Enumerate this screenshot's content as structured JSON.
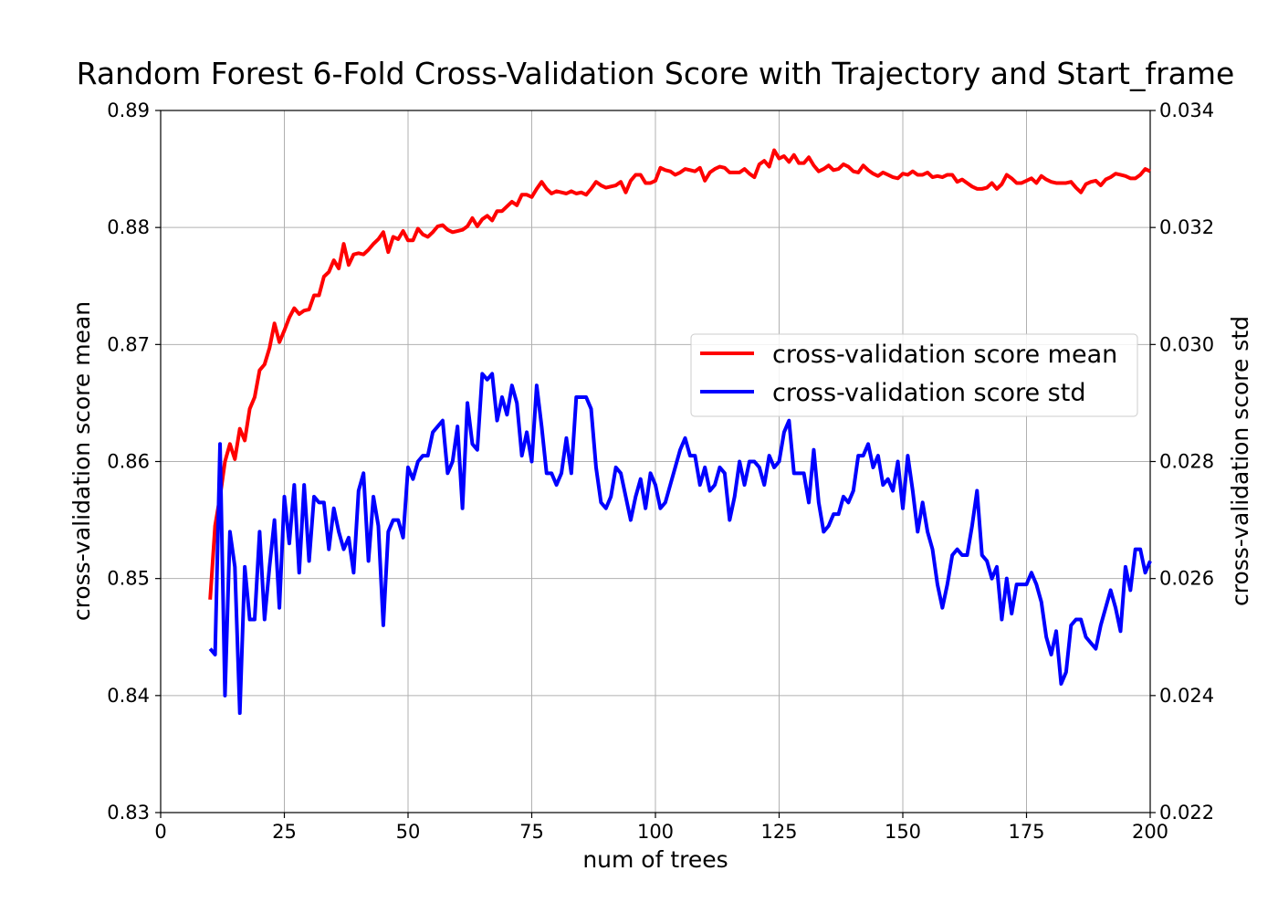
{
  "chart_data": {
    "type": "line",
    "title": "Random Forest 6-Fold Cross-Validation Score with Trajectory and Start_frame",
    "xlabel": "num of trees",
    "ylabel_left": "cross-validation score mean",
    "ylabel_right": "cross-validation score std",
    "xlim": [
      0,
      200
    ],
    "ylim_left": [
      0.83,
      0.89
    ],
    "ylim_right": [
      0.022,
      0.034
    ],
    "x_ticks": [
      "0",
      "25",
      "50",
      "75",
      "100",
      "125",
      "150",
      "175",
      "200"
    ],
    "y_left_ticks": [
      "0.83",
      "0.84",
      "0.85",
      "0.86",
      "0.87",
      "0.88",
      "0.89"
    ],
    "y_right_ticks": [
      "0.022",
      "0.024",
      "0.026",
      "0.028",
      "0.030",
      "0.032",
      "0.034"
    ],
    "grid": true,
    "legend_position": "center-right",
    "series": [
      {
        "name": "cross-validation score mean",
        "axis": "left",
        "color": "#ff0000",
        "x_start": 10,
        "x_step": 1,
        "values": [
          0.8482,
          0.8545,
          0.857,
          0.86,
          0.8615,
          0.8602,
          0.8628,
          0.8618,
          0.8645,
          0.8655,
          0.8678,
          0.8683,
          0.8697,
          0.8718,
          0.8702,
          0.8712,
          0.8723,
          0.8731,
          0.8726,
          0.8729,
          0.873,
          0.8742,
          0.8742,
          0.8758,
          0.8762,
          0.8772,
          0.8765,
          0.8786,
          0.8768,
          0.8777,
          0.8778,
          0.8777,
          0.8781,
          0.8786,
          0.879,
          0.8796,
          0.8779,
          0.8792,
          0.879,
          0.8797,
          0.8789,
          0.8789,
          0.8799,
          0.8794,
          0.8792,
          0.8796,
          0.8801,
          0.8802,
          0.8798,
          0.8796,
          0.8797,
          0.8798,
          0.8801,
          0.8808,
          0.8801,
          0.8807,
          0.881,
          0.8806,
          0.8814,
          0.8814,
          0.8818,
          0.8822,
          0.8819,
          0.8828,
          0.8828,
          0.8826,
          0.8833,
          0.8839,
          0.8833,
          0.8829,
          0.8831,
          0.883,
          0.8829,
          0.8831,
          0.8829,
          0.883,
          0.8828,
          0.8833,
          0.8839,
          0.8836,
          0.8834,
          0.8835,
          0.8836,
          0.8839,
          0.883,
          0.884,
          0.8845,
          0.8845,
          0.8838,
          0.8838,
          0.884,
          0.8851,
          0.8849,
          0.8848,
          0.8845,
          0.8847,
          0.885,
          0.8849,
          0.8848,
          0.8851,
          0.884,
          0.8847,
          0.885,
          0.8852,
          0.8851,
          0.8847,
          0.8847,
          0.8847,
          0.885,
          0.8846,
          0.8843,
          0.8854,
          0.8857,
          0.8852,
          0.8866,
          0.8859,
          0.8861,
          0.8856,
          0.8862,
          0.8855,
          0.8855,
          0.886,
          0.8853,
          0.8848,
          0.885,
          0.8853,
          0.8849,
          0.885,
          0.8854,
          0.8852,
          0.8848,
          0.8847,
          0.8853,
          0.8849,
          0.8846,
          0.8844,
          0.8847,
          0.8845,
          0.8843,
          0.8842,
          0.8846,
          0.8845,
          0.8848,
          0.8845,
          0.8845,
          0.8847,
          0.8843,
          0.8844,
          0.8843,
          0.8845,
          0.8845,
          0.8839,
          0.8841,
          0.8838,
          0.8835,
          0.8833,
          0.8833,
          0.8834,
          0.8838,
          0.8833,
          0.8837,
          0.8845,
          0.8842,
          0.8838,
          0.8838,
          0.884,
          0.8842,
          0.8838,
          0.8844,
          0.8841,
          0.8839,
          0.8838,
          0.8838,
          0.8838,
          0.8839,
          0.8834,
          0.883,
          0.8837,
          0.8839,
          0.884,
          0.8836,
          0.8841,
          0.8843,
          0.8846,
          0.8845,
          0.8844,
          0.8842,
          0.8842,
          0.8845,
          0.885,
          0.8848
        ]
      },
      {
        "name": "cross-validation score std",
        "axis": "right",
        "color": "#0000ff",
        "x_start": 10,
        "x_step": 1,
        "values": [
          0.0248,
          0.0247,
          0.0283,
          0.024,
          0.0268,
          0.0262,
          0.0237,
          0.0262,
          0.0253,
          0.0253,
          0.0268,
          0.0253,
          0.0262,
          0.027,
          0.0255,
          0.0274,
          0.0266,
          0.0276,
          0.0261,
          0.0276,
          0.0263,
          0.0274,
          0.0273,
          0.0273,
          0.0265,
          0.0272,
          0.0268,
          0.0265,
          0.0267,
          0.0261,
          0.0275,
          0.0278,
          0.0263,
          0.0274,
          0.0269,
          0.0252,
          0.0268,
          0.027,
          0.027,
          0.0267,
          0.0279,
          0.0277,
          0.028,
          0.0281,
          0.0281,
          0.0285,
          0.0286,
          0.0287,
          0.0278,
          0.028,
          0.0286,
          0.0272,
          0.029,
          0.0283,
          0.0282,
          0.0295,
          0.0294,
          0.0295,
          0.0287,
          0.0291,
          0.0288,
          0.0293,
          0.029,
          0.0281,
          0.0285,
          0.028,
          0.0293,
          0.0286,
          0.0278,
          0.0278,
          0.0276,
          0.0278,
          0.0284,
          0.0278,
          0.0291,
          0.0291,
          0.0291,
          0.0289,
          0.0279,
          0.0273,
          0.0272,
          0.0274,
          0.0279,
          0.0278,
          0.0274,
          0.027,
          0.0274,
          0.0277,
          0.0272,
          0.0278,
          0.0276,
          0.0272,
          0.0273,
          0.0276,
          0.0279,
          0.0282,
          0.0284,
          0.0281,
          0.0281,
          0.0276,
          0.0279,
          0.0275,
          0.0276,
          0.0279,
          0.0278,
          0.027,
          0.0274,
          0.028,
          0.0276,
          0.028,
          0.028,
          0.0279,
          0.0276,
          0.0281,
          0.0279,
          0.028,
          0.0285,
          0.0287,
          0.0278,
          0.0278,
          0.0278,
          0.0273,
          0.0282,
          0.0273,
          0.0268,
          0.0269,
          0.0271,
          0.0271,
          0.0274,
          0.0273,
          0.0275,
          0.0281,
          0.0281,
          0.0283,
          0.0279,
          0.0281,
          0.0276,
          0.0277,
          0.0275,
          0.028,
          0.0272,
          0.0281,
          0.0275,
          0.0268,
          0.0273,
          0.0268,
          0.0265,
          0.0259,
          0.0255,
          0.0259,
          0.0264,
          0.0265,
          0.0264,
          0.0264,
          0.0269,
          0.0275,
          0.0264,
          0.0263,
          0.026,
          0.0262,
          0.0253,
          0.026,
          0.0254,
          0.0259,
          0.0259,
          0.0259,
          0.0261,
          0.0259,
          0.0256,
          0.025,
          0.0247,
          0.0251,
          0.0242,
          0.0244,
          0.0252,
          0.0253,
          0.0253,
          0.025,
          0.0249,
          0.0248,
          0.0252,
          0.0255,
          0.0258,
          0.0255,
          0.0251,
          0.0262,
          0.0258,
          0.0265,
          0.0265,
          0.0261,
          0.0263
        ]
      }
    ]
  }
}
